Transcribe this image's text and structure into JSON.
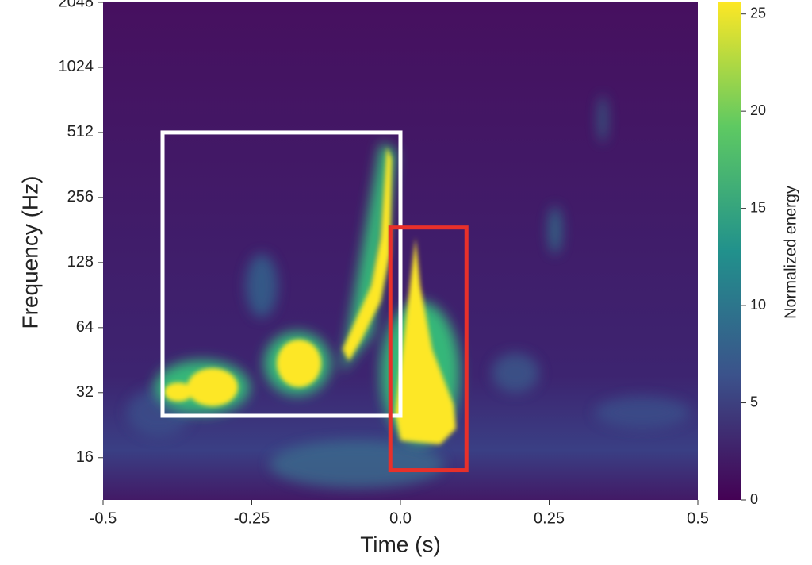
{
  "chart_data": {
    "type": "spectrogram",
    "xlabel": "Time (s)",
    "ylabel": "Frequency (Hz)",
    "colorbar_label": "Normalized energy",
    "xlim": [
      -0.5,
      0.5
    ],
    "xticks": [
      -0.5,
      -0.25,
      {
        "value": 0,
        "label": "0.0"
      },
      0.25,
      0.5
    ],
    "ylim": [
      10.2,
      2048
    ],
    "ylog": true,
    "yticks": [
      16,
      32,
      64,
      128,
      256,
      512,
      1024,
      2048
    ],
    "clim": [
      0,
      25.6
    ],
    "cticks": [
      0,
      5,
      10,
      15,
      20,
      25
    ],
    "boxes": [
      {
        "x": [
          -0.4,
          0
        ],
        "y": [
          25,
          512
        ],
        "color": "#ffffff"
      },
      {
        "x": [
          -0.017,
          0.111
        ],
        "y": [
          14,
          186
        ],
        "color": "#e8302a"
      }
    ]
  }
}
